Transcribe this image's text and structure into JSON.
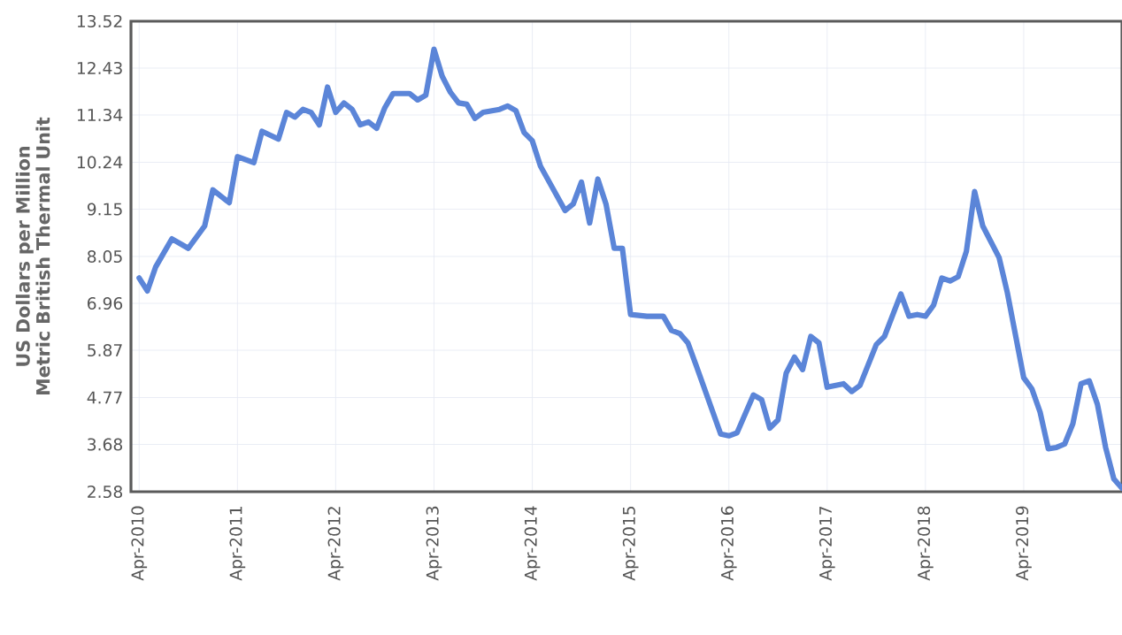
{
  "chart_data": {
    "type": "line",
    "ylabel": "US Dollars per Million Metric British Thermal Unit",
    "color": "#5b85d8",
    "grid": true,
    "x": [
      "2010-04",
      "2010-05",
      "2010-06",
      "2010-08",
      "2010-10",
      "2010-12",
      "2011-01",
      "2011-03",
      "2011-04",
      "2011-06",
      "2011-07",
      "2011-09",
      "2011-10",
      "2011-11",
      "2011-12",
      "2012-01",
      "2012-02",
      "2012-03",
      "2012-04",
      "2012-05",
      "2012-06",
      "2012-07",
      "2012-08",
      "2012-09",
      "2012-10",
      "2012-11",
      "2013-01",
      "2013-02",
      "2013-03",
      "2013-04",
      "2013-05",
      "2013-06",
      "2013-07",
      "2013-08",
      "2013-09",
      "2013-10",
      "2013-12",
      "2014-01",
      "2014-02",
      "2014-03",
      "2014-04",
      "2014-05",
      "2014-08",
      "2014-09",
      "2014-10",
      "2014-11",
      "2014-12",
      "2015-01",
      "2015-02",
      "2015-03",
      "2015-04",
      "2015-06",
      "2015-08",
      "2015-09",
      "2015-10",
      "2015-11",
      "2015-12",
      "2016-03",
      "2016-04",
      "2016-05",
      "2016-07",
      "2016-08",
      "2016-09",
      "2016-10",
      "2016-11",
      "2016-12",
      "2017-01",
      "2017-02",
      "2017-03",
      "2017-04",
      "2017-06",
      "2017-07",
      "2017-08",
      "2017-10",
      "2017-11",
      "2018-01",
      "2018-02",
      "2018-03",
      "2018-04",
      "2018-05",
      "2018-06",
      "2018-07",
      "2018-08",
      "2018-09",
      "2018-10",
      "2018-11",
      "2019-01",
      "2019-02",
      "2019-04",
      "2019-05",
      "2019-06",
      "2019-07",
      "2019-08",
      "2019-09",
      "2019-10",
      "2019-11",
      "2019-12",
      "2020-01",
      "2020-02",
      "2020-03",
      "2020-04"
    ],
    "values": [
      7.55,
      7.25,
      7.8,
      8.46,
      8.24,
      8.76,
      9.6,
      9.3,
      10.37,
      10.23,
      10.96,
      10.78,
      11.4,
      11.29,
      11.47,
      11.4,
      11.11,
      11.99,
      11.4,
      11.62,
      11.47,
      11.11,
      11.18,
      11.03,
      11.51,
      11.84,
      11.84,
      11.69,
      11.8,
      12.87,
      12.24,
      11.87,
      11.62,
      11.59,
      11.26,
      11.4,
      11.47,
      11.55,
      11.44,
      10.93,
      10.74,
      10.15,
      9.12,
      9.27,
      9.78,
      8.83,
      9.85,
      9.27,
      8.24,
      8.24,
      6.7,
      6.66,
      6.66,
      6.33,
      6.26,
      6.04,
      5.52,
      3.92,
      3.88,
      3.95,
      4.83,
      4.72,
      4.06,
      4.25,
      5.34,
      5.71,
      5.42,
      6.19,
      6.04,
      5.01,
      5.09,
      4.91,
      5.05,
      6.0,
      6.19,
      7.18,
      6.66,
      6.7,
      6.66,
      6.92,
      7.55,
      7.48,
      7.58,
      8.17,
      9.56,
      8.76,
      8.02,
      7.21,
      5.23,
      4.97,
      4.43,
      3.58,
      3.61,
      3.69,
      4.16,
      5.09,
      5.16,
      4.61,
      3.61,
      2.88,
      2.66
    ],
    "xlim": [
      "2010-03",
      "2020-04"
    ],
    "xticks": [
      {
        "value": "2010-04",
        "label": "Apr-2010"
      },
      {
        "value": "2011-04",
        "label": "Apr-2011"
      },
      {
        "value": "2012-04",
        "label": "Apr-2012"
      },
      {
        "value": "2013-04",
        "label": "Apr-2013"
      },
      {
        "value": "2014-04",
        "label": "Apr-2014"
      },
      {
        "value": "2015-04",
        "label": "Apr-2015"
      },
      {
        "value": "2016-04",
        "label": "Apr-2016"
      },
      {
        "value": "2017-04",
        "label": "Apr-2017"
      },
      {
        "value": "2018-04",
        "label": "Apr-2018"
      },
      {
        "value": "2019-04",
        "label": "Apr-2019"
      }
    ],
    "ylim": [
      2.58,
      13.52
    ],
    "yticks": [
      2.58,
      3.68,
      4.77,
      5.87,
      6.96,
      8.05,
      9.15,
      10.24,
      11.34,
      12.43,
      13.52
    ]
  }
}
